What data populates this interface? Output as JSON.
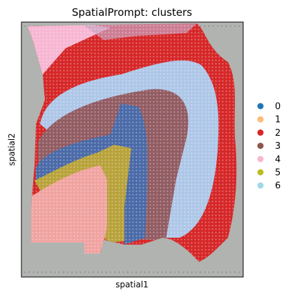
{
  "chart_data": {
    "type": "scatter",
    "title": "SpatialPrompt: clusters",
    "xlabel": "spatial1",
    "ylabel": "spatial2",
    "grid": false,
    "legend_position": "right",
    "background_color": "#b1b3b0",
    "legend": [
      {
        "label": "0",
        "color": "#1f77b4"
      },
      {
        "label": "1",
        "color": "#ffbb78"
      },
      {
        "label": "2",
        "color": "#d62728"
      },
      {
        "label": "3",
        "color": "#8c564b"
      },
      {
        "label": "4",
        "color": "#f7b6d2"
      },
      {
        "label": "5",
        "color": "#bcbd22"
      },
      {
        "label": "6",
        "color": "#9edae5"
      }
    ]
  }
}
